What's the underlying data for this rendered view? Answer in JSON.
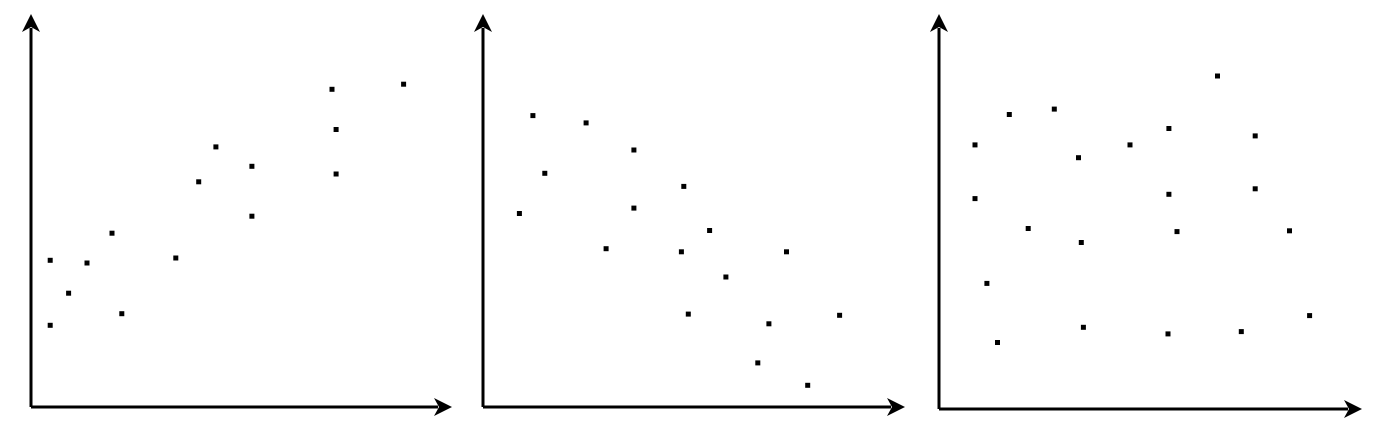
{
  "chart_data": [
    {
      "type": "scatter",
      "title": "",
      "xlabel": "",
      "ylabel": "",
      "xlim": [
        0,
        100
      ],
      "ylim": [
        0,
        100
      ],
      "grid": false,
      "axis_ticks": false,
      "points": [
        {
          "x": 4.7,
          "y": 37.9
        },
        {
          "x": 4.7,
          "y": 21.1
        },
        {
          "x": 9.2,
          "y": 29.4
        },
        {
          "x": 13.7,
          "y": 37.2
        },
        {
          "x": 19.8,
          "y": 44.9
        },
        {
          "x": 22.2,
          "y": 24.1
        },
        {
          "x": 35.4,
          "y": 38.5
        },
        {
          "x": 41.0,
          "y": 58.2
        },
        {
          "x": 45.2,
          "y": 67.2
        },
        {
          "x": 54.0,
          "y": 62.2
        },
        {
          "x": 54.0,
          "y": 49.3
        },
        {
          "x": 73.6,
          "y": 82.1
        },
        {
          "x": 74.6,
          "y": 71.7
        },
        {
          "x": 74.6,
          "y": 60.2
        },
        {
          "x": 91.1,
          "y": 83.4
        }
      ]
    },
    {
      "type": "scatter",
      "title": "",
      "xlabel": "",
      "ylabel": "",
      "xlim": [
        0,
        100
      ],
      "ylim": [
        0,
        100
      ],
      "grid": false,
      "axis_ticks": false,
      "points": [
        {
          "x": 8.9,
          "y": 50.0
        },
        {
          "x": 12.2,
          "y": 75.3
        },
        {
          "x": 15.1,
          "y": 60.4
        },
        {
          "x": 25.2,
          "y": 73.4
        },
        {
          "x": 30.1,
          "y": 40.9
        },
        {
          "x": 36.9,
          "y": 66.4
        },
        {
          "x": 36.9,
          "y": 51.4
        },
        {
          "x": 48.5,
          "y": 40.1
        },
        {
          "x": 49.1,
          "y": 57.0
        },
        {
          "x": 50.2,
          "y": 24.0
        },
        {
          "x": 55.4,
          "y": 45.6
        },
        {
          "x": 59.4,
          "y": 33.6
        },
        {
          "x": 67.2,
          "y": 11.4
        },
        {
          "x": 69.9,
          "y": 21.5
        },
        {
          "x": 74.2,
          "y": 40.1
        },
        {
          "x": 79.4,
          "y": 5.6
        },
        {
          "x": 87.2,
          "y": 23.7
        }
      ]
    },
    {
      "type": "scatter",
      "title": "",
      "xlabel": "",
      "ylabel": "",
      "xlim": [
        0,
        100
      ],
      "ylim": [
        0,
        100
      ],
      "grid": false,
      "axis_ticks": false,
      "points": [
        {
          "x": 8.8,
          "y": 67.9
        },
        {
          "x": 8.8,
          "y": 54.1
        },
        {
          "x": 11.7,
          "y": 32.3
        },
        {
          "x": 14.3,
          "y": 17.1
        },
        {
          "x": 17.2,
          "y": 75.7
        },
        {
          "x": 21.8,
          "y": 46.4
        },
        {
          "x": 28.2,
          "y": 77.1
        },
        {
          "x": 34.1,
          "y": 64.6
        },
        {
          "x": 34.8,
          "y": 42.8
        },
        {
          "x": 35.3,
          "y": 21.0
        },
        {
          "x": 46.7,
          "y": 67.9
        },
        {
          "x": 56.2,
          "y": 72.1
        },
        {
          "x": 56.2,
          "y": 55.2
        },
        {
          "x": 56.0,
          "y": 19.3
        },
        {
          "x": 58.2,
          "y": 45.6
        },
        {
          "x": 68.1,
          "y": 85.6
        },
        {
          "x": 77.3,
          "y": 70.2
        },
        {
          "x": 77.3,
          "y": 56.6
        },
        {
          "x": 73.9,
          "y": 19.9
        },
        {
          "x": 85.7,
          "y": 45.8
        },
        {
          "x": 90.6,
          "y": 24.0
        }
      ]
    }
  ]
}
